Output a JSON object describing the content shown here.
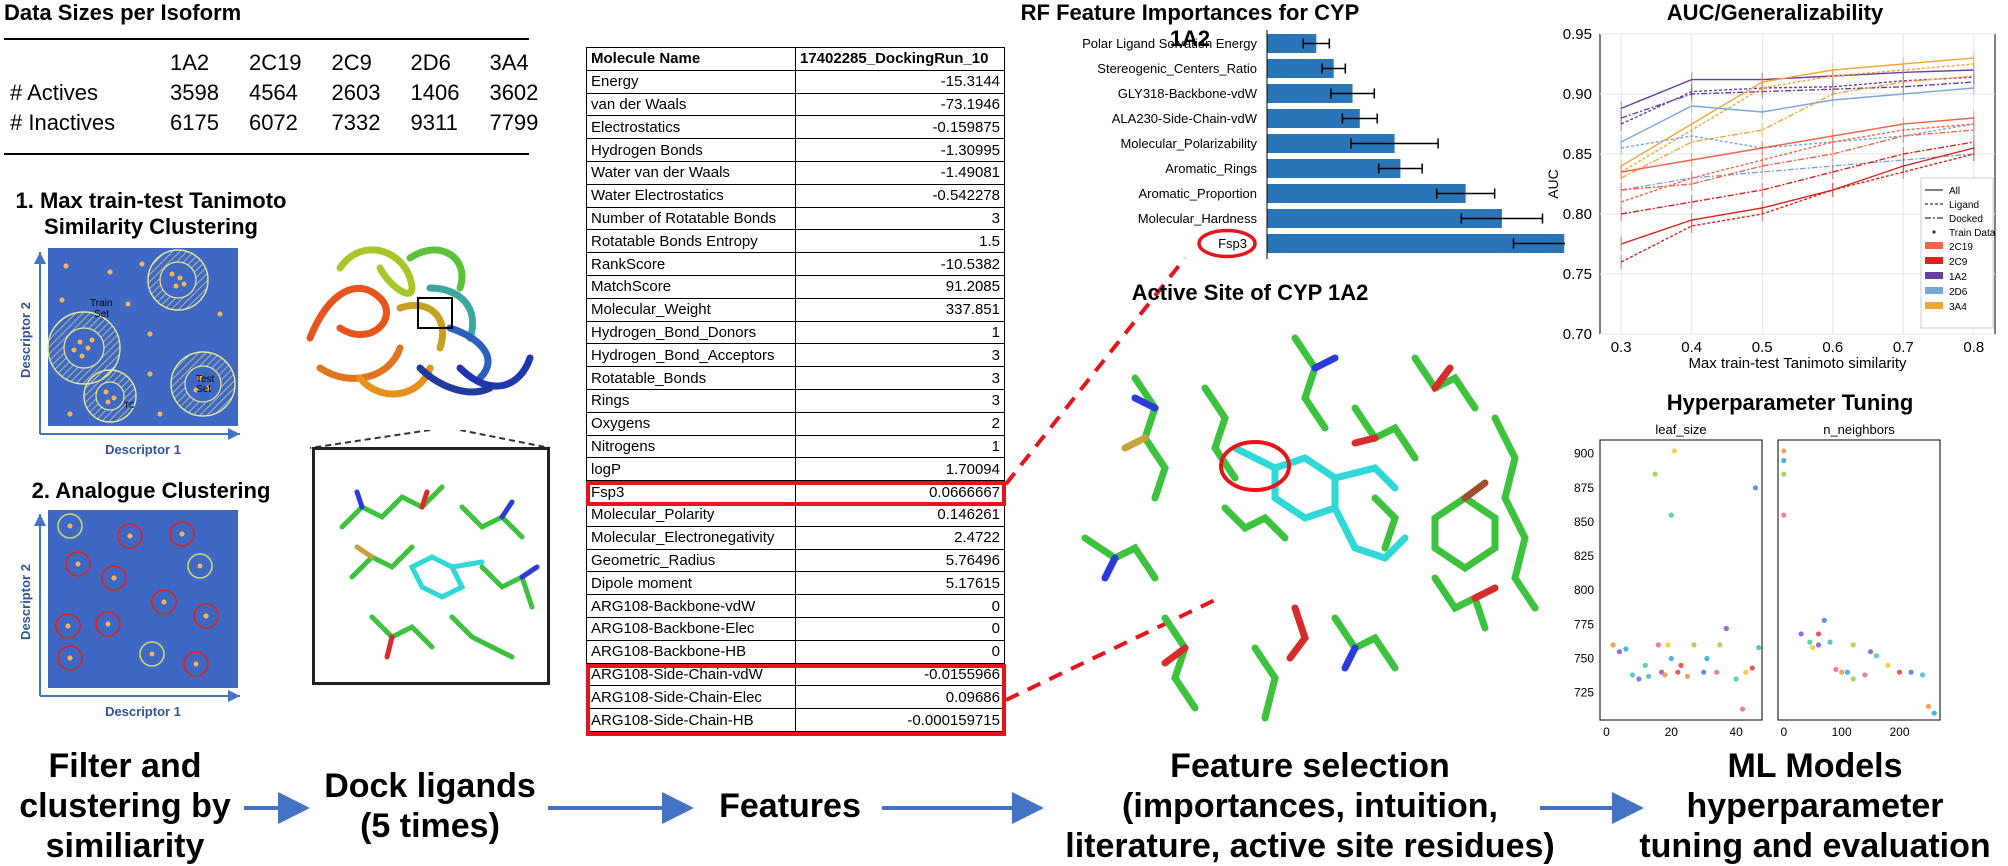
{
  "sizes": {
    "title": "Data Sizes per Isoform",
    "columns": [
      "1A2",
      "2C19",
      "2C9",
      "2D6",
      "3A4"
    ],
    "rows": [
      {
        "label": "# Actives",
        "values": [
          "3598",
          "4564",
          "2603",
          "1406",
          "3602"
        ]
      },
      {
        "label": "# Inactives",
        "values": [
          "6175",
          "6072",
          "7332",
          "9311",
          "7799"
        ]
      }
    ]
  },
  "cluster1": {
    "title_line1": "1. Max train-test Tanimoto",
    "title_line2": "Similarity Clustering",
    "train_label_1": "Train",
    "train_label_2": "Set",
    "test_label_1": "Test",
    "test_label_2": "Set",
    "tc_label": "TC",
    "xlabel": "Descriptor 1",
    "ylabel": "Descriptor 2"
  },
  "cluster2": {
    "title": "2. Analogue Clustering",
    "xlabel": "Descriptor 1",
    "ylabel": "Descriptor 2"
  },
  "features": {
    "header": [
      "Molecule Name",
      "17402285_DockingRun_10"
    ],
    "rows": [
      [
        "Energy",
        "-15.3144"
      ],
      [
        "van der Waals",
        "-73.1946"
      ],
      [
        "Electrostatics",
        "-0.159875"
      ],
      [
        "Hydrogen Bonds",
        "-1.30995"
      ],
      [
        "Water van der Waals",
        "-1.49081"
      ],
      [
        "Water Electrostatics",
        "-0.542278"
      ],
      [
        "Number of Rotatable Bonds",
        "3"
      ],
      [
        "Rotatable Bonds Entropy",
        "1.5"
      ],
      [
        "RankScore",
        "-10.5382"
      ],
      [
        "MatchScore",
        "91.2085"
      ],
      [
        "Molecular_Weight",
        "337.851"
      ],
      [
        "Hydrogen_Bond_Donors",
        "1"
      ],
      [
        "Hydrogen_Bond_Acceptors",
        "3"
      ],
      [
        "Rotatable_Bonds",
        "3"
      ],
      [
        "Rings",
        "3"
      ],
      [
        "Oxygens",
        "2"
      ],
      [
        "Nitrogens",
        "1"
      ],
      [
        "logP",
        "1.70094"
      ],
      [
        "Fsp3",
        "0.0666667"
      ],
      [
        "Molecular_Polarity",
        "0.146261"
      ],
      [
        "Molecular_Electronegativity",
        "2.4722"
      ],
      [
        "Geometric_Radius",
        "5.76496"
      ],
      [
        "Dipole moment",
        "5.17615"
      ],
      [
        "ARG108-Backbone-vdW",
        "0"
      ],
      [
        "ARG108-Backbone-Elec",
        "0"
      ],
      [
        "ARG108-Backbone-HB",
        "0"
      ],
      [
        "ARG108-Side-Chain-vdW",
        "-0.0155966"
      ],
      [
        "ARG108-Side-Chain-Elec",
        "0.09686"
      ],
      [
        "ARG108-Side-Chain-HB",
        "-0.000159715"
      ]
    ]
  },
  "rf": {
    "title": "RF Feature Importances for CYP 1A2",
    "labels": [
      "Polar Ligand Solvation Energy",
      "Stereogenic_Centers_Ratio",
      "GLY318-Backbone-vdW",
      "ALA230-Side-Chain-vdW",
      "Molecular_Polarizability",
      "Aromatic_Rings",
      "Aromatic_Proportion",
      "Molecular_Hardness",
      "Fsp3"
    ],
    "values": [
      0.034,
      0.046,
      0.059,
      0.064,
      0.088,
      0.092,
      0.137,
      0.162,
      0.205
    ],
    "errors": [
      0.009,
      0.008,
      0.015,
      0.012,
      0.03,
      0.015,
      0.02,
      0.028,
      0.035
    ],
    "color": "#2a74b8"
  },
  "site": {
    "title": "Active Site of CYP 1A2"
  },
  "auc": {
    "title": "AUC/Generalizability",
    "xlabel": "Max train-test Tanimoto similarity",
    "ylabel": "AUC",
    "x": [
      0.3,
      0.4,
      0.5,
      0.6,
      0.7,
      0.8
    ],
    "yticks": [
      "0.70",
      "0.75",
      "0.80",
      "0.85",
      "0.90",
      "0.95"
    ],
    "legend_styles": [
      {
        "label": "All",
        "dash": ""
      },
      {
        "label": "Ligand",
        "dash": "3,2"
      },
      {
        "label": "Docked",
        "dash": "6,2,2,2"
      },
      {
        "label": "Train Data",
        "dash": "dot"
      }
    ],
    "legend_colors": [
      {
        "label": "2C19",
        "color": "#f2634a"
      },
      {
        "label": "2C9",
        "color": "#e0201b"
      },
      {
        "label": "1A2",
        "color": "#6a3fa0"
      },
      {
        "label": "2D6",
        "color": "#7aa6dc"
      },
      {
        "label": "3A4",
        "color": "#f6a53a"
      }
    ]
  },
  "chart_data": [
    {
      "type": "bar",
      "title": "RF Feature Importances for CYP 1A2",
      "categories": [
        "Polar Ligand Solvation Energy",
        "Stereogenic_Centers_Ratio",
        "GLY318-Backbone-vdW",
        "ALA230-Side-Chain-vdW",
        "Molecular_Polarizability",
        "Aromatic_Rings",
        "Aromatic_Proportion",
        "Molecular_Hardness",
        "Fsp3"
      ],
      "values": [
        0.034,
        0.046,
        0.059,
        0.064,
        0.088,
        0.092,
        0.137,
        0.162,
        0.205
      ]
    },
    {
      "type": "line",
      "title": "AUC/Generalizability",
      "xlabel": "Max train-test Tanimoto similarity",
      "ylabel": "AUC",
      "x": [
        0.3,
        0.4,
        0.5,
        0.6,
        0.7,
        0.8
      ],
      "ylim": [
        0.7,
        0.95
      ],
      "series": [
        {
          "name": "1A2",
          "style": "All",
          "values": [
            0.888,
            0.912,
            0.912,
            0.915,
            0.918,
            0.92
          ]
        },
        {
          "name": "1A2",
          "style": "Ligand",
          "values": [
            0.875,
            0.902,
            0.905,
            0.906,
            0.911,
            0.914
          ]
        },
        {
          "name": "1A2",
          "style": "Docked",
          "values": [
            0.88,
            0.9,
            0.902,
            0.904,
            0.906,
            0.91
          ]
        },
        {
          "name": "3A4",
          "style": "All",
          "values": [
            0.84,
            0.875,
            0.91,
            0.92,
            0.925,
            0.93
          ]
        },
        {
          "name": "3A4",
          "style": "Ligand",
          "values": [
            0.835,
            0.87,
            0.905,
            0.915,
            0.92,
            0.925
          ]
        },
        {
          "name": "3A4",
          "style": "Docked",
          "values": [
            0.83,
            0.86,
            0.87,
            0.9,
            0.91,
            0.915
          ]
        },
        {
          "name": "2D6",
          "style": "All",
          "values": [
            0.86,
            0.89,
            0.885,
            0.895,
            0.9,
            0.905
          ]
        },
        {
          "name": "2D6",
          "style": "Ligand",
          "values": [
            0.855,
            0.865,
            0.855,
            0.86,
            0.865,
            0.875
          ]
        },
        {
          "name": "2D6",
          "style": "Docked",
          "values": [
            0.82,
            0.83,
            0.835,
            0.84,
            0.845,
            0.85
          ]
        },
        {
          "name": "2C19",
          "style": "All",
          "values": [
            0.835,
            0.845,
            0.855,
            0.865,
            0.875,
            0.88
          ]
        },
        {
          "name": "2C19",
          "style": "Ligand",
          "values": [
            0.81,
            0.83,
            0.845,
            0.86,
            0.87,
            0.875
          ]
        },
        {
          "name": "2C19",
          "style": "Docked",
          "values": [
            0.82,
            0.825,
            0.84,
            0.85,
            0.865,
            0.87
          ]
        },
        {
          "name": "2C9",
          "style": "All",
          "values": [
            0.775,
            0.795,
            0.805,
            0.82,
            0.84,
            0.855
          ]
        },
        {
          "name": "2C9",
          "style": "Ligand",
          "values": [
            0.76,
            0.79,
            0.8,
            0.82,
            0.835,
            0.85
          ]
        },
        {
          "name": "2C9",
          "style": "Docked",
          "values": [
            0.8,
            0.81,
            0.82,
            0.835,
            0.85,
            0.86
          ]
        }
      ]
    },
    {
      "type": "scatter",
      "title": "leaf_size",
      "x": [
        2,
        6,
        15,
        16,
        17,
        20,
        21,
        22,
        10,
        13,
        18,
        20,
        27,
        34,
        37,
        40,
        43,
        45,
        46,
        8,
        25,
        31,
        35,
        42,
        4,
        12,
        19,
        23,
        30,
        47
      ],
      "y": [
        760,
        757,
        885,
        760,
        740,
        855,
        902,
        740,
        735,
        737,
        738,
        750,
        760,
        740,
        772,
        735,
        740,
        743,
        875,
        738,
        737,
        750,
        760,
        713,
        755,
        745,
        760,
        745,
        740,
        758
      ],
      "ylim": [
        710,
        910
      ]
    },
    {
      "type": "scatter",
      "title": "n_neighbors",
      "x": [
        0,
        0,
        0,
        0,
        30,
        45,
        50,
        60,
        70,
        80,
        100,
        110,
        120,
        140,
        150,
        160,
        180,
        200,
        220,
        240,
        250,
        260,
        120,
        90,
        60
      ],
      "y": [
        902,
        895,
        885,
        855,
        768,
        762,
        758,
        768,
        778,
        762,
        740,
        740,
        760,
        738,
        755,
        752,
        745,
        740,
        740,
        738,
        715,
        710,
        735,
        742,
        760
      ],
      "ylim": [
        710,
        910
      ]
    }
  ],
  "hp": {
    "title": "Hyperparameter Tuning",
    "panel1": "leaf_size",
    "panel2": "n_neighbors",
    "yticks": [
      "900",
      "875",
      "850",
      "825",
      "800",
      "775",
      "750",
      "725"
    ],
    "xticks1": [
      "0",
      "20",
      "40"
    ],
    "xticks2": [
      "0",
      "100",
      "200"
    ]
  },
  "flow": {
    "step1": [
      "Filter and",
      "clustering by",
      "similiarity"
    ],
    "step2": [
      "Dock ligands",
      "(5 times)"
    ],
    "step3": "Features",
    "step4": [
      "Feature selection",
      "(importances, intuition,",
      "literature,  active site residues)"
    ],
    "step5": [
      "ML Models",
      "hyperparameter",
      "tuning and evaluation"
    ],
    "arrow_color": "#4472c4"
  },
  "rf_fsp3_label": "Fsp3"
}
